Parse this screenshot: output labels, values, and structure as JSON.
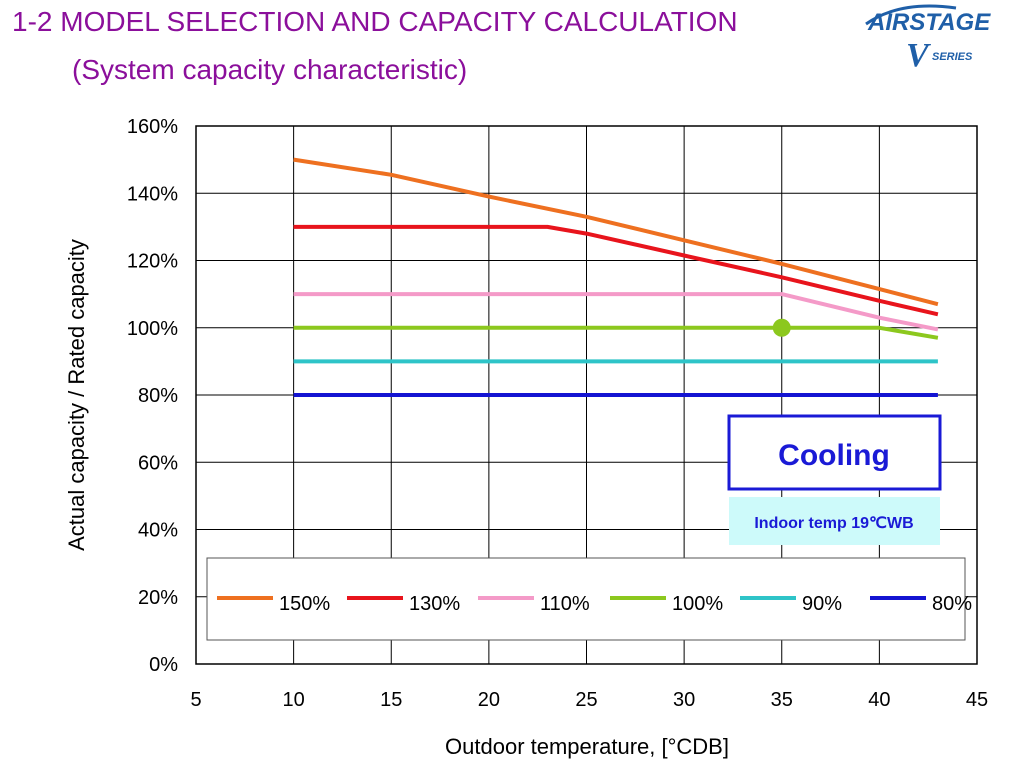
{
  "header": {
    "title": "1-2 MODEL SELECTION AND CAPACITY CALCULATION",
    "subtitle": "(System capacity characteristic)",
    "logo_text": "AIRSTAGE",
    "logo_series": "SERIES",
    "logo_letter": "V"
  },
  "colors": {
    "title": "#8b0f9b",
    "logo": "#1f5fa8",
    "cooling_box_border": "#1a1ad6",
    "cooling_text": "#1a1ad6",
    "info_box_bg": "#cdfafa"
  },
  "chart_data": {
    "type": "line",
    "xlabel": "Outdoor temperature,    [°CDB]",
    "ylabel": "Actual capacity / Rated capacity",
    "xlim": [
      5,
      45
    ],
    "ylim": [
      0,
      160
    ],
    "xticks": [
      "5",
      "10",
      "15",
      "20",
      "25",
      "30",
      "35",
      "40",
      "45"
    ],
    "yticks": [
      "0%",
      "20%",
      "40%",
      "60%",
      "80%",
      "100%",
      "120%",
      "140%",
      "160%"
    ],
    "grid": true,
    "legend_position": "bottom",
    "series": [
      {
        "name": "150%",
        "color": "#ee7020",
        "points": [
          [
            10,
            150
          ],
          [
            15,
            145.5
          ],
          [
            20,
            139
          ],
          [
            25,
            133
          ],
          [
            30,
            126
          ],
          [
            35,
            119
          ],
          [
            40,
            111.5
          ],
          [
            43,
            107
          ]
        ]
      },
      {
        "name": "130%",
        "color": "#e8141c",
        "points": [
          [
            10,
            130
          ],
          [
            23,
            130
          ],
          [
            25,
            128
          ],
          [
            30,
            121.5
          ],
          [
            35,
            115
          ],
          [
            40,
            108
          ],
          [
            43,
            104
          ]
        ]
      },
      {
        "name": "110%",
        "color": "#f49ac8",
        "points": [
          [
            10,
            110
          ],
          [
            35,
            110
          ],
          [
            40,
            103
          ],
          [
            43,
            99.5
          ]
        ]
      },
      {
        "name": "100%",
        "color": "#8cc81e",
        "points": [
          [
            10,
            100
          ],
          [
            40,
            100
          ],
          [
            43,
            97
          ]
        ]
      },
      {
        "name": "90%",
        "color": "#2ec4c8",
        "points": [
          [
            10,
            90
          ],
          [
            43,
            90
          ]
        ]
      },
      {
        "name": "80%",
        "color": "#1414d2",
        "points": [
          [
            10,
            80
          ],
          [
            43,
            80
          ]
        ]
      }
    ],
    "marker": {
      "x": 35,
      "y": 100,
      "color": "#8cc81e"
    },
    "annotations": {
      "mode_label": "Cooling",
      "condition_label": "Indoor temp 19℃WB"
    }
  }
}
